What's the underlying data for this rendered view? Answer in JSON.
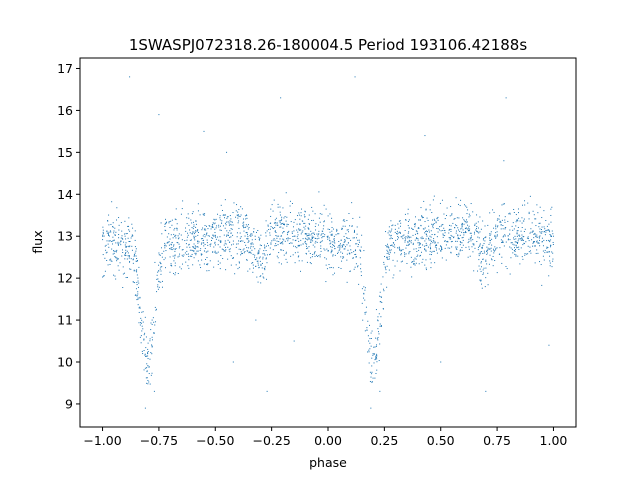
{
  "chart_data": {
    "type": "scatter",
    "title": "1SWASPJ072318.26-180004.5 Period 193106.42188s",
    "xlabel": "phase",
    "ylabel": "flux",
    "xlim": [
      -1.1,
      1.1
    ],
    "ylim": [
      8.45,
      17.25
    ],
    "xticks": [
      -1.0,
      -0.75,
      -0.5,
      -0.25,
      0.0,
      0.25,
      0.5,
      0.75,
      1.0
    ],
    "xtick_labels": [
      "−1.00",
      "−0.75",
      "−0.50",
      "−0.25",
      "0.00",
      "0.25",
      "0.50",
      "0.75",
      "1.00"
    ],
    "yticks": [
      9,
      10,
      11,
      12,
      13,
      14,
      15,
      16,
      17
    ],
    "ytick_labels": [
      "9",
      "10",
      "11",
      "12",
      "13",
      "14",
      "15",
      "16",
      "17"
    ],
    "grid": false,
    "marker_color": "#1f77b4",
    "series": [
      {
        "light_curve": {
          "baseline": 12.95,
          "scatter": 0.35,
          "primary_minimum": {
            "phase": 0.2,
            "depth": 2.8,
            "half_width": 0.075
          },
          "secondary_minimum": {
            "phase": 0.7,
            "depth": 0.6,
            "half_width": 0.07
          },
          "phase_range": [
            -1.0,
            1.0
          ]
        },
        "values_sample": [
          {
            "x": -0.95,
            "y": 12.9
          },
          {
            "x": -0.9,
            "y": 13.0
          },
          {
            "x": -0.85,
            "y": 12.7
          },
          {
            "x": -0.82,
            "y": 11.2
          },
          {
            "x": -0.8,
            "y": 10.2
          },
          {
            "x": -0.78,
            "y": 11.0
          },
          {
            "x": -0.75,
            "y": 12.6
          },
          {
            "x": -0.6,
            "y": 13.1
          },
          {
            "x": -0.45,
            "y": 13.0
          },
          {
            "x": -0.3,
            "y": 12.4
          },
          {
            "x": -0.15,
            "y": 13.0
          },
          {
            "x": 0.0,
            "y": 13.0
          },
          {
            "x": 0.1,
            "y": 12.9
          },
          {
            "x": 0.18,
            "y": 10.5
          },
          {
            "x": 0.2,
            "y": 10.2
          },
          {
            "x": 0.22,
            "y": 11.0
          },
          {
            "x": 0.3,
            "y": 12.9
          },
          {
            "x": 0.45,
            "y": 13.1
          },
          {
            "x": 0.6,
            "y": 12.9
          },
          {
            "x": 0.7,
            "y": 12.4
          },
          {
            "x": 0.85,
            "y": 13.0
          },
          {
            "x": 1.0,
            "y": 13.0
          }
        ],
        "outliers": [
          {
            "x": -0.88,
            "y": 16.8
          },
          {
            "x": -0.75,
            "y": 15.9
          },
          {
            "x": -0.21,
            "y": 16.3
          },
          {
            "x": 0.12,
            "y": 16.8
          },
          {
            "x": 0.79,
            "y": 16.3
          },
          {
            "x": -0.55,
            "y": 15.5
          },
          {
            "x": -0.45,
            "y": 15.0
          },
          {
            "x": 0.43,
            "y": 15.4
          },
          {
            "x": 0.78,
            "y": 14.8
          },
          {
            "x": -0.42,
            "y": 10.0
          },
          {
            "x": 0.5,
            "y": 10.0
          },
          {
            "x": -0.77,
            "y": 9.3
          },
          {
            "x": 0.23,
            "y": 9.3
          },
          {
            "x": -0.27,
            "y": 9.3
          },
          {
            "x": 0.7,
            "y": 9.3
          },
          {
            "x": -0.81,
            "y": 8.9
          },
          {
            "x": 0.19,
            "y": 8.9
          },
          {
            "x": -0.15,
            "y": 10.5
          },
          {
            "x": 0.98,
            "y": 10.4
          },
          {
            "x": -0.32,
            "y": 11.0
          }
        ]
      }
    ]
  }
}
